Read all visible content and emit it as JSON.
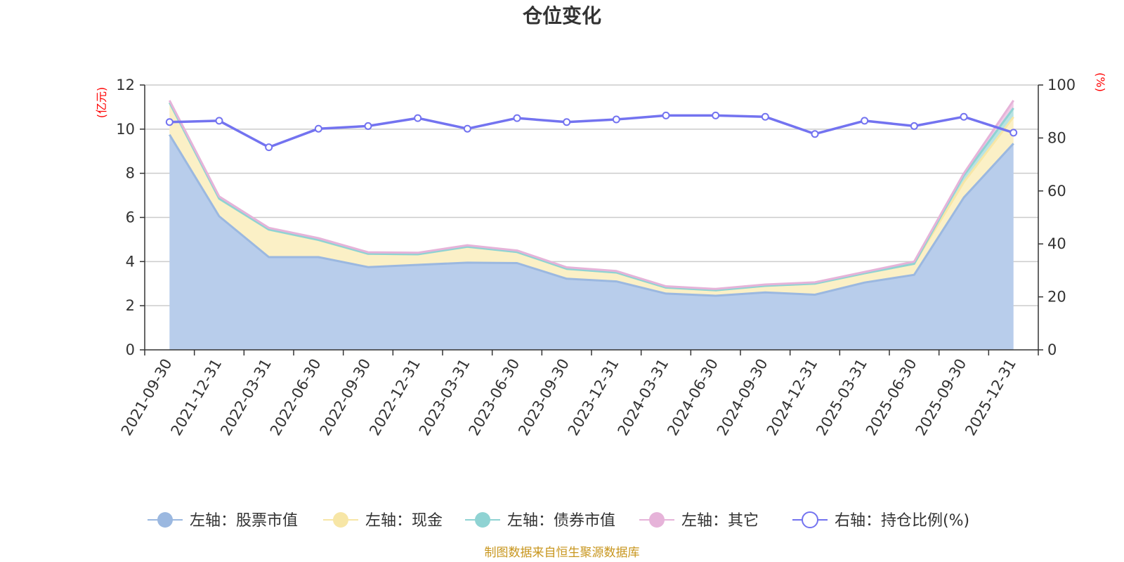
{
  "chart_data": {
    "type": "area",
    "title": "仓位变化",
    "left_unit": "(亿元)",
    "right_unit": "(%)",
    "categories": [
      "2021-09-30",
      "2021-12-31",
      "2022-03-31",
      "2022-06-30",
      "2022-09-30",
      "2022-12-31",
      "2023-03-31",
      "2023-06-30",
      "2023-09-30",
      "2023-12-31",
      "2024-03-31",
      "2024-06-30",
      "2024-09-30",
      "2024-12-31",
      "2025-03-31",
      "2025-06-30",
      "2025-09-30",
      "2025-12-31"
    ],
    "left_axis": {
      "min": 0,
      "max": 12,
      "ticks": [
        "0",
        "2",
        "4",
        "6",
        "8",
        "10",
        "12"
      ]
    },
    "right_axis": {
      "min": 0,
      "max": 100,
      "ticks": [
        "0",
        "20",
        "40",
        "60",
        "80",
        "100"
      ]
    },
    "stacked": true,
    "series": [
      {
        "name": "左轴：股票市值",
        "axis": "left",
        "color": "#9bb8e0",
        "fill": "#b8cdeb",
        "values": [
          9.75,
          6.05,
          4.2,
          4.2,
          3.75,
          3.85,
          3.95,
          3.93,
          3.22,
          3.1,
          2.55,
          2.45,
          2.6,
          2.5,
          3.05,
          3.4,
          6.9,
          9.35
        ]
      },
      {
        "name": "左轴：现金",
        "axis": "left",
        "color": "#f7e6a6",
        "fill": "#fbf0c6",
        "values": [
          1.45,
          0.8,
          1.25,
          0.78,
          0.6,
          0.48,
          0.72,
          0.5,
          0.45,
          0.4,
          0.27,
          0.25,
          0.3,
          0.5,
          0.42,
          0.5,
          0.7,
          1.2
        ]
      },
      {
        "name": "左轴：债券市值",
        "axis": "left",
        "color": "#8fd3d3",
        "fill": "#b8e3e3",
        "values": [
          0,
          0,
          0,
          0,
          0,
          0,
          0,
          0,
          0,
          0,
          0,
          0,
          0,
          0,
          0,
          0,
          0.3,
          0.4
        ]
      },
      {
        "name": "左轴：其它",
        "axis": "left",
        "color": "#e6b3d9",
        "fill": "#efcbe6",
        "values": [
          0.1,
          0.1,
          0.08,
          0.08,
          0.07,
          0.07,
          0.07,
          0.07,
          0.07,
          0.07,
          0.06,
          0.06,
          0.06,
          0.06,
          0.06,
          0.1,
          0.1,
          0.35
        ]
      },
      {
        "name": "右轴：持仓比例(%)",
        "axis": "right",
        "color": "#7373f0",
        "values": [
          86,
          86.5,
          76.5,
          83.5,
          84.5,
          87.5,
          83.5,
          87.5,
          86,
          87,
          88.5,
          88.5,
          88,
          81.5,
          86.5,
          84.5,
          88,
          82
        ]
      }
    ]
  },
  "source_note": "制图数据来自恒生聚源数据库"
}
